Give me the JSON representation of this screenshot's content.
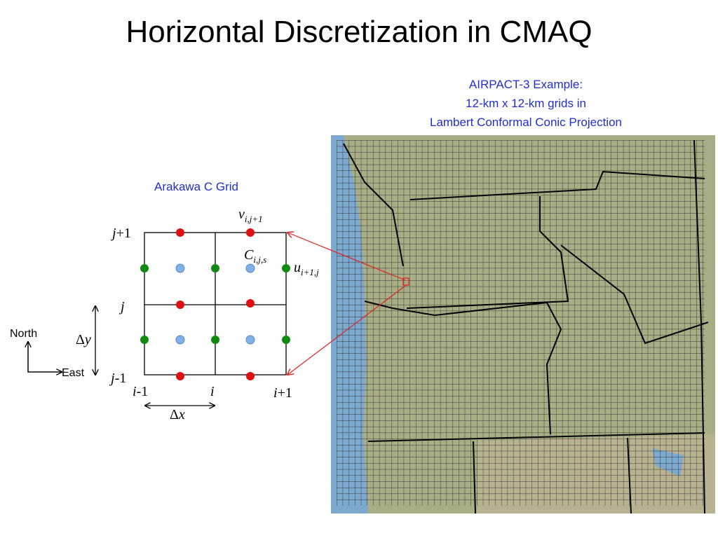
{
  "title": "Horizontal Discretization in CMAQ",
  "map_caption": [
    "AIRPACT-3 Example:",
    "12-km x 12-km grids in",
    "Lambert Conformal Conic Projection"
  ],
  "arakawa": {
    "title": "Arakawa C Grid",
    "v_label": [
      "v",
      "i,j+1"
    ],
    "c_label": [
      "C",
      "i,j,s"
    ],
    "u_label": [
      "u",
      "i+1,j"
    ],
    "rows": [
      [
        "j",
        "+1"
      ],
      [
        "j",
        ""
      ],
      [
        "j",
        "-1"
      ]
    ],
    "cols": [
      [
        "i",
        "-1"
      ],
      [
        "i",
        ""
      ],
      [
        "i",
        "+1"
      ]
    ],
    "dy": [
      "Δ",
      "y"
    ],
    "dx": [
      "Δ",
      "x"
    ]
  },
  "compass": {
    "north": "North",
    "east": "East"
  }
}
